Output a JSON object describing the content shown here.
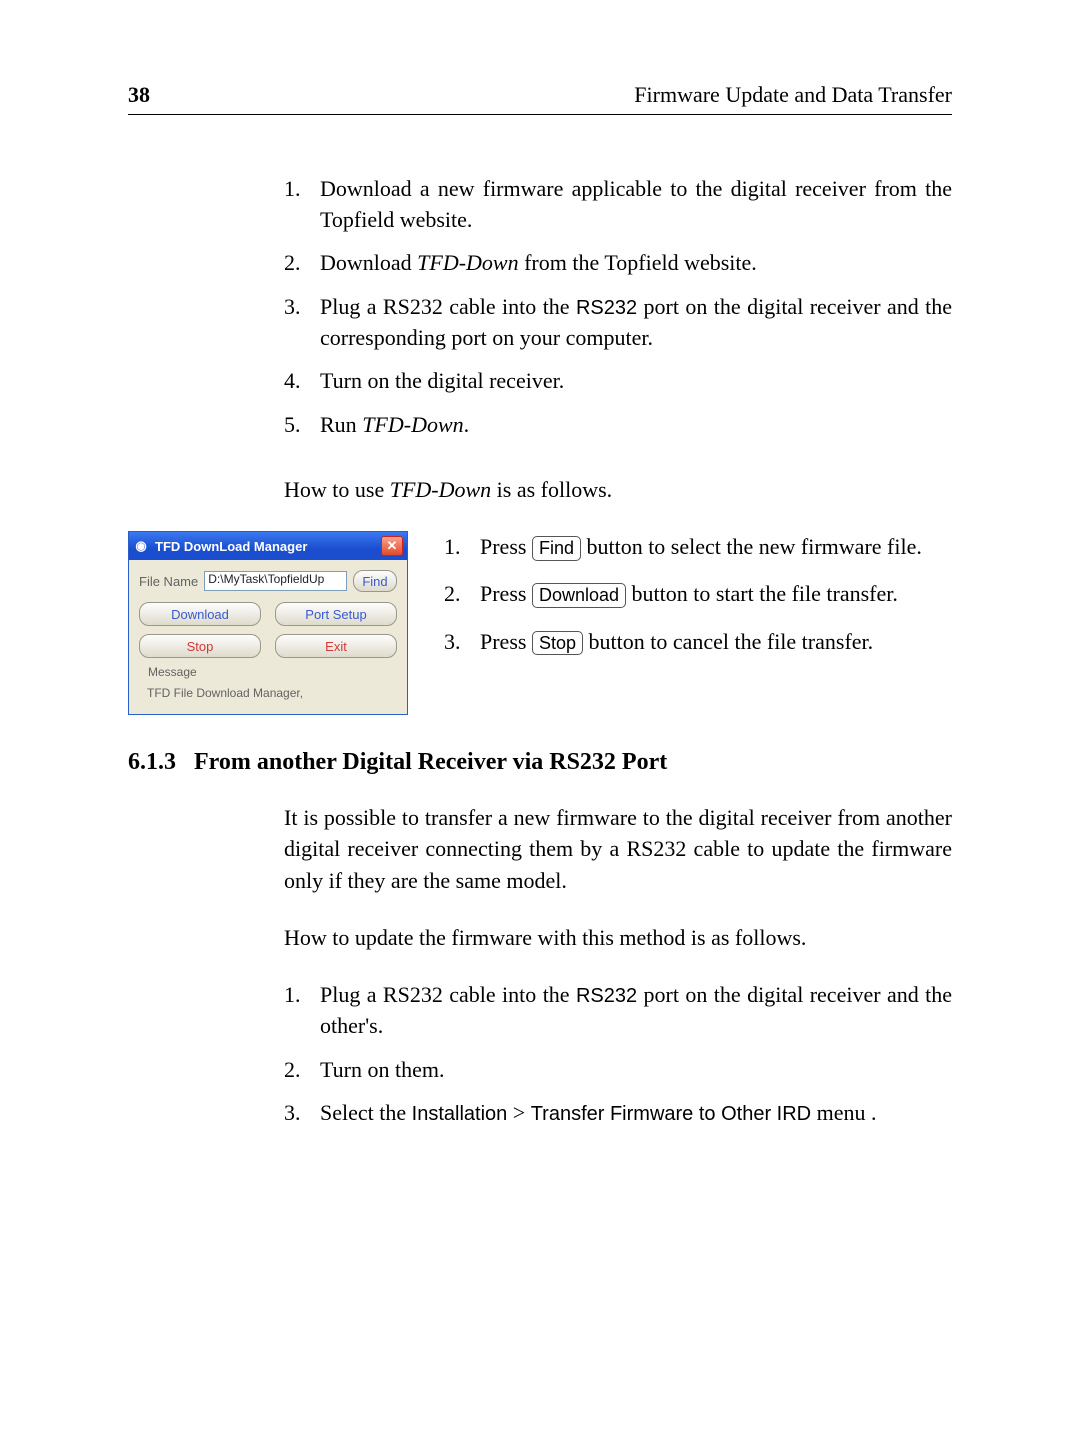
{
  "page": {
    "number": "38",
    "header": "Firmware Update and Data Transfer"
  },
  "steps_a": [
    {
      "n": "1.",
      "t": [
        "Download a new firmware applicable to the digital receiver from the Topfield website."
      ]
    },
    {
      "n": "2.",
      "t": [
        "Download ",
        {
          "i": "TFD-Down"
        },
        " from the Topfield website."
      ]
    },
    {
      "n": "3.",
      "t": [
        "Plug a RS232 cable into the ",
        {
          "s": "RS232"
        },
        " port on the digital receiver and the corresponding port on your computer."
      ]
    },
    {
      "n": "4.",
      "t": [
        "Turn on the digital receiver."
      ]
    },
    {
      "n": "5.",
      "t": [
        "Run ",
        {
          "i": "TFD-Down"
        },
        "."
      ]
    }
  ],
  "lead": [
    "How to use ",
    {
      "i": "TFD-Down"
    },
    " is as follows."
  ],
  "app": {
    "title": "TFD DownLoad Manager",
    "file_label": "File Name",
    "file_value": "D:\\MyTask\\TopfieldUp",
    "find": "Find",
    "download": "Download",
    "portsetup": "Port Setup",
    "stop": "Stop",
    "exit": "Exit",
    "message_label": "Message",
    "message_text": "TFD File Download Manager,"
  },
  "steps_b": [
    {
      "n": "1.",
      "t": [
        "Press ",
        {
          "k": "Find"
        },
        " button to select the new firmware file."
      ]
    },
    {
      "n": "2.",
      "t": [
        "Press ",
        {
          "k": "Download"
        },
        " button to start the file transfer."
      ]
    },
    {
      "n": "3.",
      "t": [
        "Press ",
        {
          "k": "Stop"
        },
        " button to cancel the file transfer."
      ]
    }
  ],
  "section": {
    "num": "6.1.3",
    "title": "From another Digital Receiver via RS232 Port"
  },
  "para_c": "It is possible to transfer a new firmware to the digital receiver from another digital receiver connecting them by a RS232 cable to update the firmware only if they are the same model.",
  "para_d": "How to update the firmware with this method is as follows.",
  "steps_c": [
    {
      "n": "1.",
      "t": [
        "Plug a RS232 cable into the ",
        {
          "s": "RS232"
        },
        " port on the digital receiver and the other's."
      ]
    },
    {
      "n": "2.",
      "t": [
        "Turn on them."
      ]
    },
    {
      "n": "3.",
      "t": [
        "Select the ",
        {
          "s": "Installation"
        },
        " > ",
        {
          "s": "Transfer Firmware to Other IRD"
        },
        " menu ."
      ]
    }
  ]
}
